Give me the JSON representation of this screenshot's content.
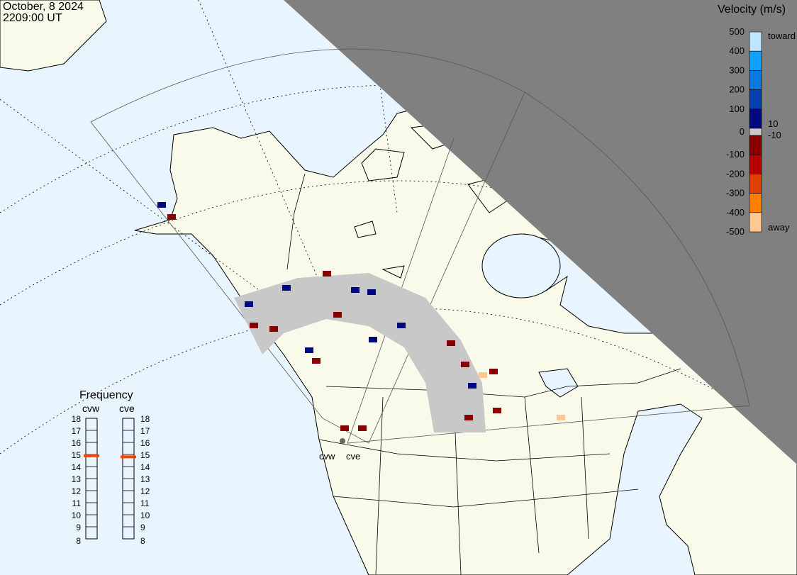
{
  "header": {
    "date": "October, 8 2024",
    "time": "2209:00 UT"
  },
  "radars": [
    {
      "name": "cvw",
      "frequency_mhz": 14.9
    },
    {
      "name": "cve",
      "frequency_mhz": 14.8
    }
  ],
  "frequency_legend": {
    "title": "Frequency",
    "ticks": [
      "18",
      "17",
      "16",
      "15",
      "14",
      "13",
      "12",
      "11",
      "10",
      "9",
      "8"
    ],
    "range": [
      8,
      18
    ],
    "marker_color": "#ff4000"
  },
  "velocity_legend": {
    "title": "Velocity (m/s)",
    "ticks": [
      "500",
      "400",
      "300",
      "200",
      "100",
      "0",
      "-100",
      "-200",
      "-300",
      "-400",
      "-500"
    ],
    "toward_label": "toward",
    "away_label": "away",
    "pos_threshold": "10",
    "neg_threshold": "-10",
    "colors": [
      "#bfe6ff",
      "#10a0ff",
      "#0a78e0",
      "#0640b0",
      "#000a80",
      "#8a0000",
      "#b80000",
      "#e04000",
      "#ff8000",
      "#ffc890"
    ],
    "low_velocity_color": "#c8c8c8"
  },
  "map_colors": {
    "ocean": "#e8f5ff",
    "land": "#fafaea",
    "night": "#808080",
    "ground_scatter": "#c8c8c8"
  }
}
